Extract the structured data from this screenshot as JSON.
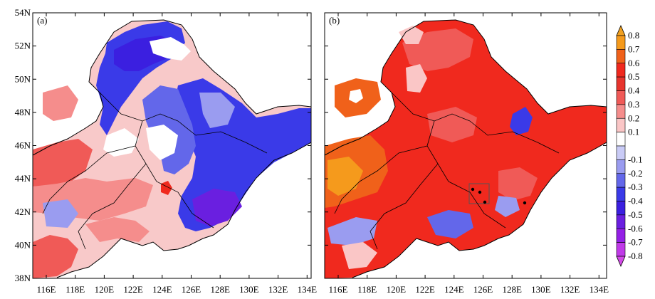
{
  "panels": [
    {
      "label": "(a)",
      "lat_ticks": [
        "54N",
        "52N",
        "50N",
        "48N",
        "46N",
        "44N",
        "42N",
        "40N",
        "38N"
      ],
      "lon_ticks": [
        "116E",
        "118E",
        "120E",
        "122E",
        "124E",
        "126E",
        "128E",
        "130E",
        "132E",
        "134E"
      ]
    },
    {
      "label": "(b)",
      "lat_ticks": [],
      "lon_ticks": [
        "116E",
        "118E",
        "120E",
        "122E",
        "124E",
        "126E",
        "128E",
        "130E",
        "132E",
        "134E"
      ]
    }
  ],
  "colorbar": {
    "labels": [
      "0.8",
      "0.7",
      "0.6",
      "0.5",
      "0.4",
      "0.3",
      "0.2",
      "0.1",
      "-0.1",
      "-0.2",
      "-0.3",
      "-0.4",
      "-0.5",
      "-0.6",
      "-0.7",
      "-0.8"
    ],
    "colors": [
      "#f59a1c",
      "#f0611a",
      "#f0291e",
      "#e7342d",
      "#f05a57",
      "#f58d8c",
      "#fac6c6",
      "#ffffff",
      "#c9cbf6",
      "#9a9cf0",
      "#6367ea",
      "#3a3ae8",
      "#3b1fe0",
      "#6a1fe0",
      "#9420e6",
      "#c03ae8"
    ],
    "top_arrow_color": "#f0a020",
    "bottom_arrow_color": "#d44ae8"
  }
}
